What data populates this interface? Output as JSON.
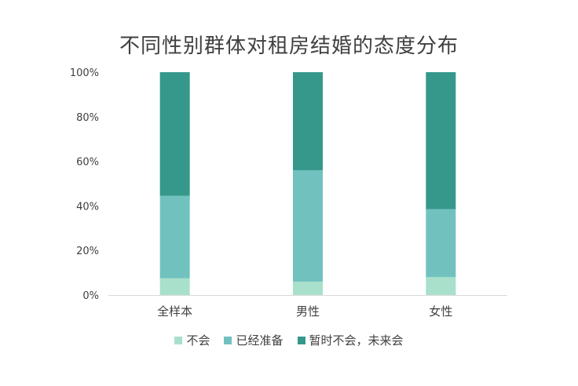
{
  "chart_data": {
    "type": "bar",
    "stacked": true,
    "percent": true,
    "title": "不同性别群体对租房结婚的态度分布",
    "categories": [
      "全样本",
      "男性",
      "女性"
    ],
    "series": [
      {
        "name": "不会",
        "color": "#a8e0cc",
        "values": [
          7.5,
          6.0,
          8.0
        ]
      },
      {
        "name": "已经准备",
        "color": "#71c2bf",
        "values": [
          37.0,
          50.0,
          30.5
        ]
      },
      {
        "name": "暂时不会，未来会",
        "color": "#35988b",
        "values": [
          55.5,
          44.0,
          61.5
        ]
      }
    ],
    "yticks": [
      "0%",
      "20%",
      "40%",
      "60%",
      "80%",
      "100%"
    ],
    "ylim": [
      0,
      100
    ],
    "legend_position": "bottom",
    "grid": false
  }
}
